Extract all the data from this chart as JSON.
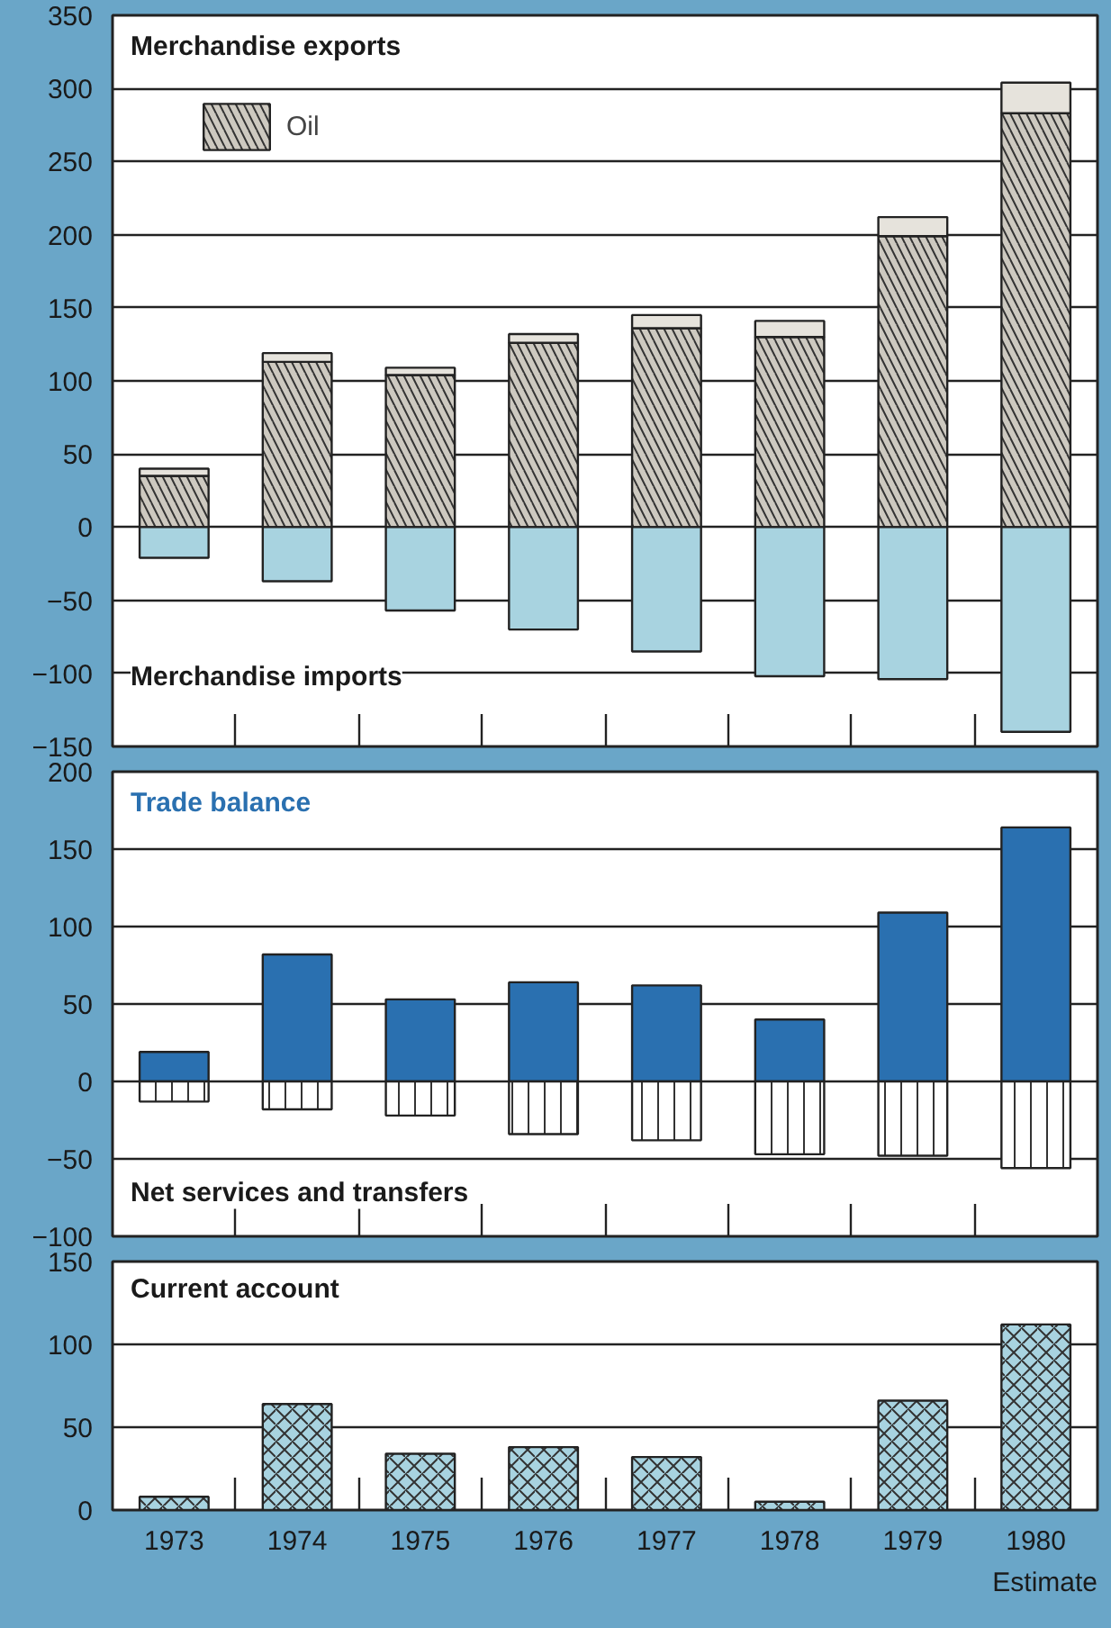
{
  "chart_data": [
    {
      "type": "bar",
      "title": "Merchandise exports",
      "stacked": true,
      "categories": [
        "1973",
        "1974",
        "1975",
        "1976",
        "1977",
        "1978",
        "1979",
        "1980"
      ],
      "tick_labels": "y",
      "grid": "y",
      "legend": "top left",
      "ylim": [
        -150,
        350
      ],
      "yticks": [
        -150,
        -100,
        -50,
        0,
        50,
        100,
        150,
        200,
        250,
        300,
        350
      ],
      "series": [
        {
          "name": "Oil",
          "color": "#cdc9c0",
          "values": [
            35,
            113,
            104,
            126,
            136,
            130,
            199,
            283
          ]
        },
        {
          "color": "#e6e3dc",
          "values": [
            5,
            6,
            5,
            6,
            9,
            11,
            13,
            21
          ]
        },
        {
          "name": "Merchandise imports",
          "color": "#a8d3e0",
          "values": [
            -21,
            -37,
            -57,
            -70,
            -85,
            -102,
            -104,
            -140
          ]
        }
      ]
    },
    {
      "type": "bar",
      "stacked": true,
      "categories": [
        "1973",
        "1974",
        "1975",
        "1976",
        "1977",
        "1978",
        "1979",
        "1980"
      ],
      "tick_labels": "y",
      "grid": "y",
      "ylim": [
        -100,
        200
      ],
      "yticks": [
        -100,
        -50,
        0,
        50,
        100,
        150,
        200
      ],
      "series": [
        {
          "name": "Trade balance",
          "color": "#2a70b0",
          "values": [
            19,
            82,
            53,
            64,
            62,
            40,
            109,
            164
          ]
        },
        {
          "name": "Net services and transfers",
          "color": "#ffffff",
          "values": [
            -13,
            -18,
            -22,
            -34,
            -38,
            -47,
            -48,
            -56
          ]
        }
      ]
    },
    {
      "type": "bar",
      "title": "Current account",
      "categories": [
        "1973",
        "1974",
        "1975",
        "1976",
        "1977",
        "1978",
        "1979",
        "1980"
      ],
      "grid": "y",
      "ylim": [
        0,
        150
      ],
      "yticks": [
        0,
        50,
        100,
        150
      ],
      "annotations": [
        "Estimate"
      ],
      "series": [
        {
          "color": "#a8d3e0",
          "values": [
            8,
            64,
            34,
            38,
            32,
            5,
            66,
            112
          ]
        }
      ]
    }
  ]
}
